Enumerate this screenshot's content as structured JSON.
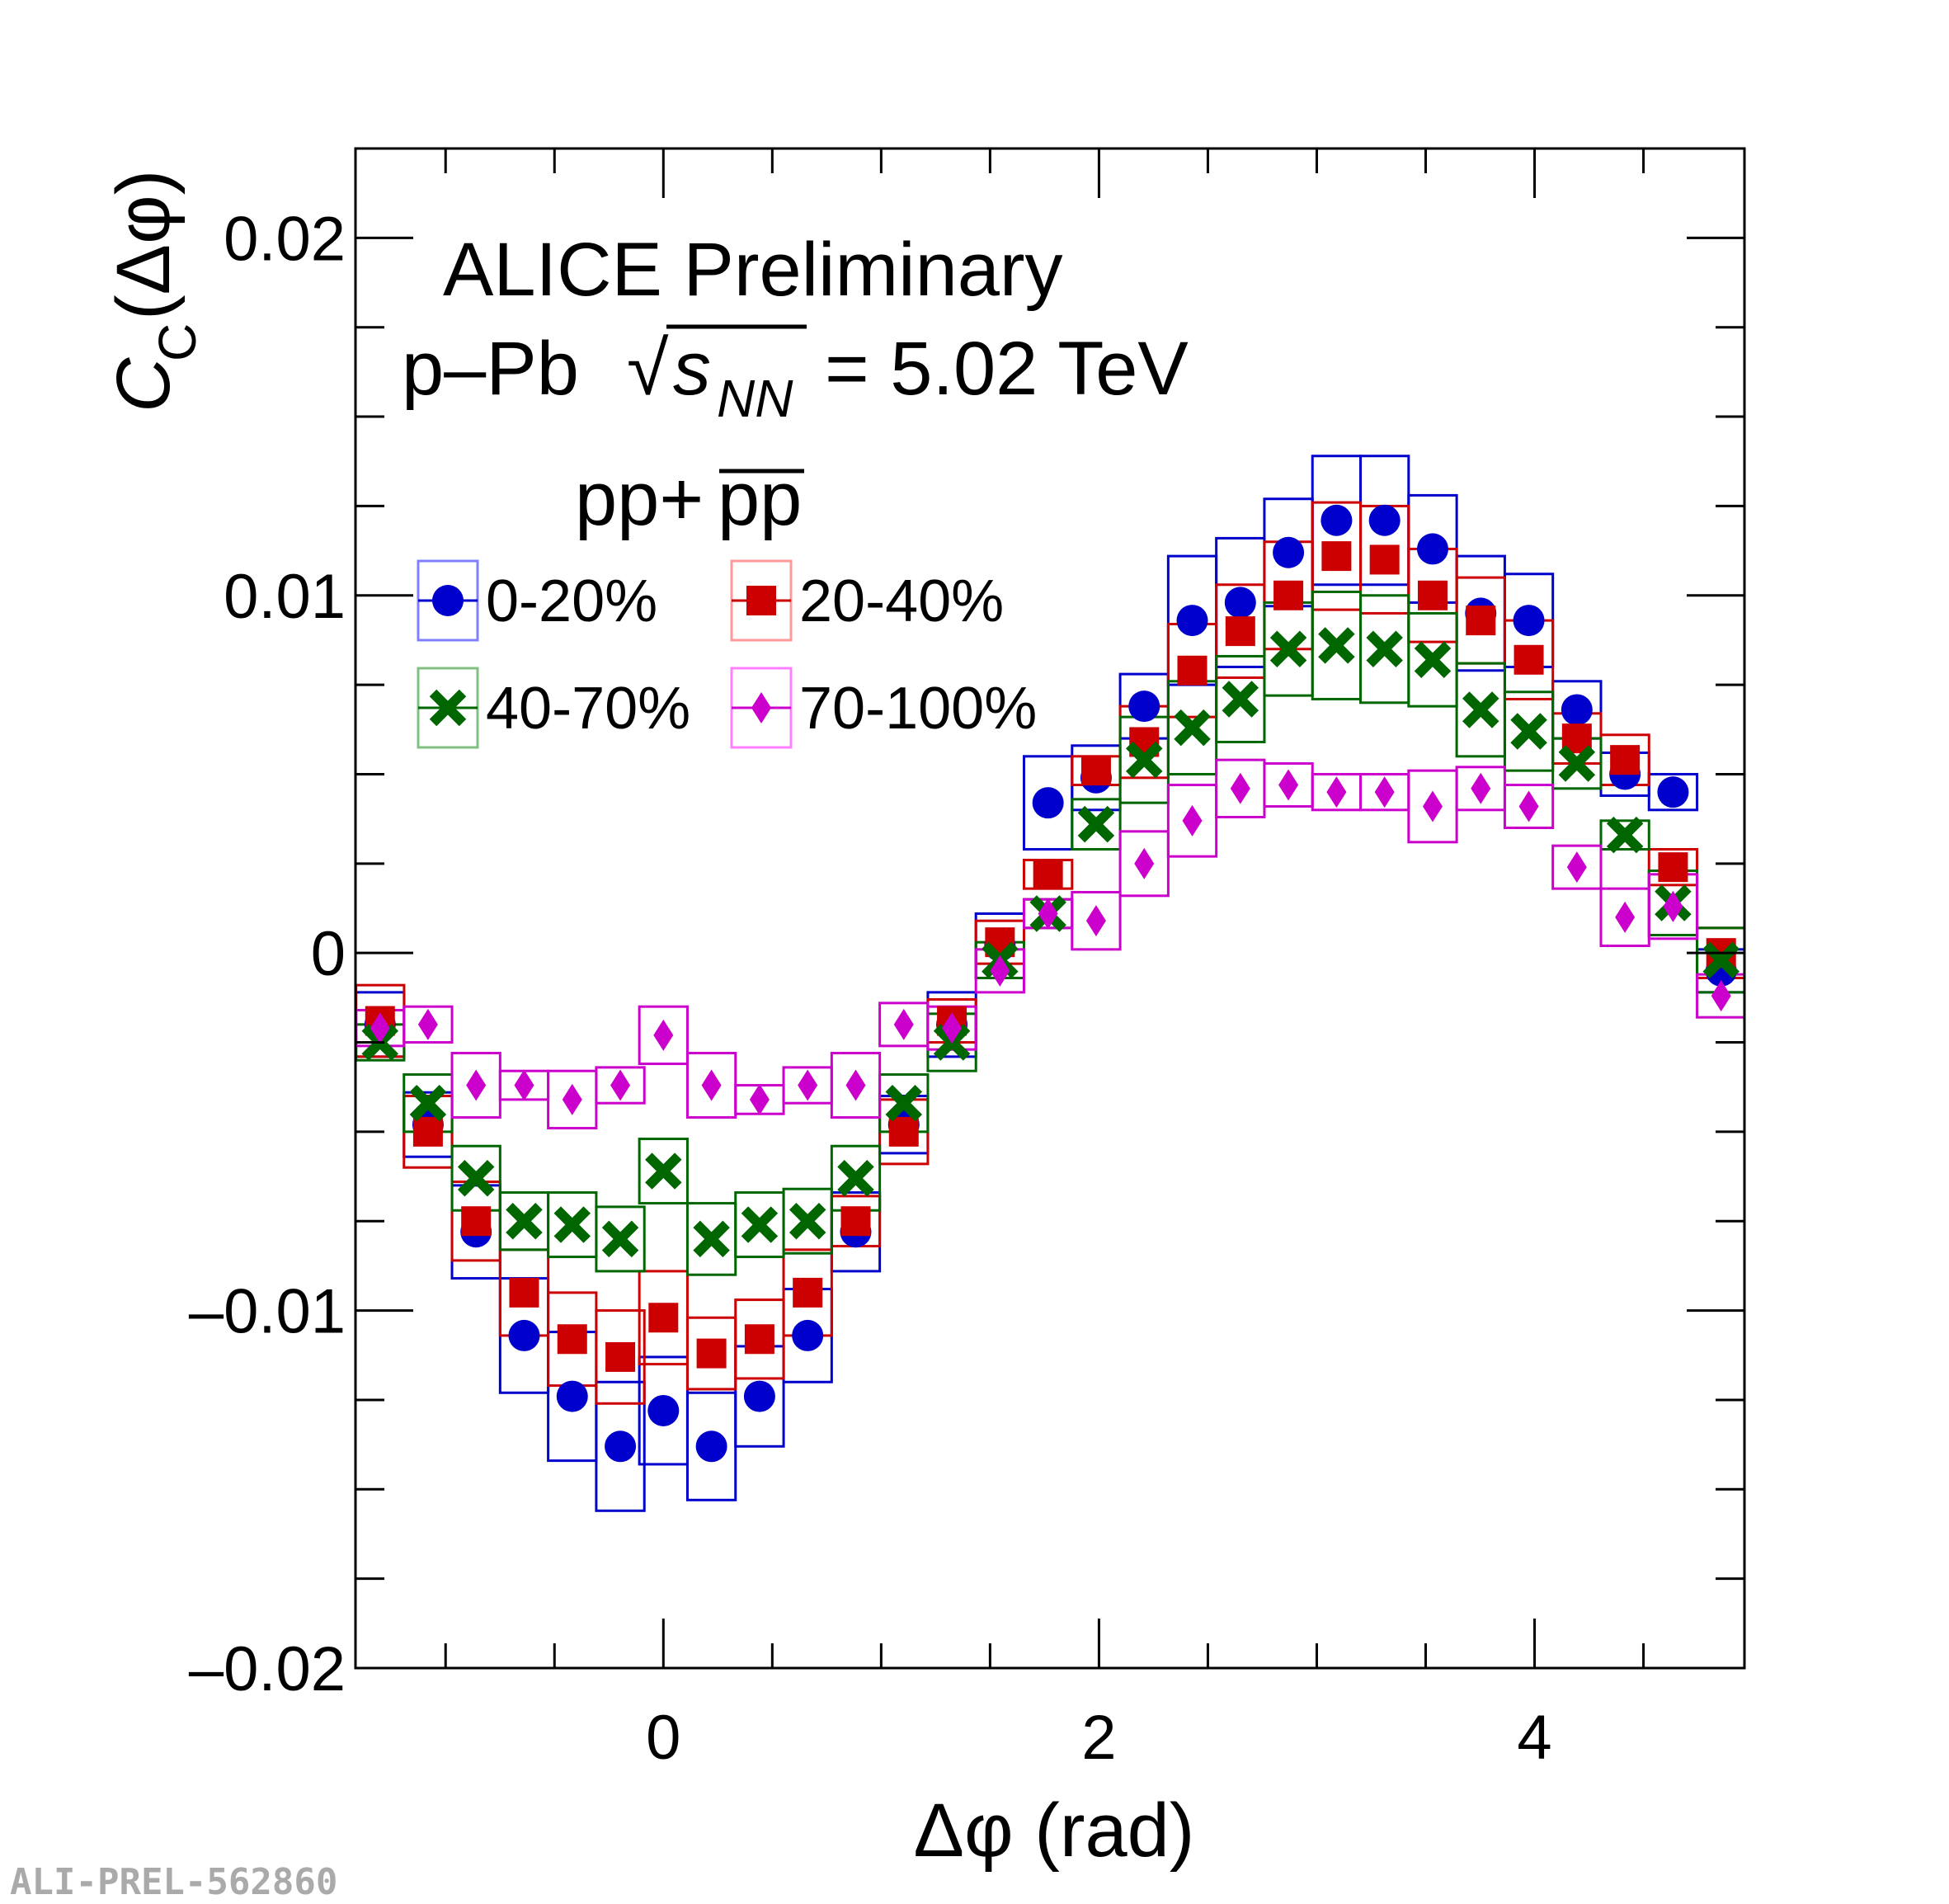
{
  "chart_data": {
    "type": "scatter",
    "title": "ALICE Preliminary",
    "subtitle_prefix": "p–Pb",
    "subtitle_sqrt_symbol": "√",
    "subtitle_s": "s",
    "subtitle_sub": "NN",
    "subtitle_suffix": "= 5.02 TeV",
    "legend_header_plain": "pp+",
    "legend_header_overlined": "pp",
    "xlabel": "Δφ (rad)",
    "ylabel_main": "C",
    "ylabel_sub": "C",
    "ylabel_arg": "(Δφ)",
    "xlim": [
      -1.4137,
      4.9637
    ],
    "ylim": [
      -0.02,
      0.0225
    ],
    "x_ticks": [
      0,
      2,
      4
    ],
    "x_tick_labels": [
      "0",
      "2",
      "4"
    ],
    "y_ticks": [
      -0.02,
      -0.01,
      0,
      0.01,
      0.02
    ],
    "y_tick_labels": [
      "–0.02",
      "–0.01",
      "0",
      "0.01",
      "0.02"
    ],
    "legend_position": "top-left",
    "bin_width": 0.2208,
    "x": [
      -1.3009,
      -1.0808,
      -0.8601,
      -0.6393,
      -0.4186,
      -0.1978,
      0.0,
      0.2208,
      0.4416,
      0.6623,
      0.8831,
      1.1038,
      1.3246,
      1.5453,
      1.7661,
      1.9868,
      2.2076,
      2.4283,
      2.6491,
      2.8698,
      3.0906,
      3.3113,
      3.5321,
      3.7528,
      3.9736,
      4.1943,
      4.4151,
      4.6358,
      4.8566
    ],
    "series": [
      {
        "name": "0-20%",
        "color": "#0000cc",
        "marker": "circle",
        "values": [
          -0.002,
          -0.0048,
          -0.0078,
          -0.0107,
          -0.0124,
          -0.0138,
          -0.0128,
          -0.0138,
          -0.0124,
          -0.0107,
          -0.0078,
          -0.0048,
          -0.002,
          0.0002,
          0.0042,
          0.0049,
          0.0069,
          0.0093,
          0.0098,
          0.0112,
          0.0121,
          0.0121,
          0.0113,
          0.0095,
          0.0093,
          0.0068,
          0.005,
          0.0045,
          -0.0005
        ],
        "sys_half": [
          0.0009,
          0.0009,
          0.0013,
          0.0016,
          0.0018,
          0.0018,
          0.0015,
          0.0015,
          0.0014,
          0.0013,
          0.0011,
          0.0008,
          0.0009,
          0.0009,
          0.0013,
          0.0009,
          0.0009,
          0.0018,
          0.0018,
          0.0015,
          0.0018,
          0.0018,
          0.0015,
          0.0016,
          0.0013,
          0.0008,
          0.0006,
          0.0005,
          0.0006
        ]
      },
      {
        "name": "20-40%",
        "color": "#cc0000",
        "marker": "square",
        "values": [
          -0.0019,
          -0.005,
          -0.0075,
          -0.0095,
          -0.0108,
          -0.0113,
          -0.0102,
          -0.0112,
          -0.0108,
          -0.0095,
          -0.0075,
          -0.005,
          -0.0019,
          0.0003,
          0.0022,
          0.0051,
          0.0059,
          0.0079,
          0.009,
          0.01,
          0.0111,
          0.011,
          0.01,
          0.0093,
          0.0082,
          0.006,
          0.0054,
          0.0024,
          0.0
        ],
        "sys_half": [
          0.001,
          0.001,
          0.0011,
          0.0012,
          0.0013,
          0.0013,
          0.0013,
          0.001,
          0.0011,
          0.0012,
          0.0007,
          0.0009,
          0.0006,
          0.0006,
          0.0004,
          0.0004,
          0.001,
          0.0013,
          0.0013,
          0.0015,
          0.0015,
          0.0015,
          0.0013,
          0.0012,
          0.0011,
          0.0007,
          0.0007,
          0.0005,
          0.0007
        ]
      },
      {
        "name": "40-70%",
        "color": "#006600",
        "marker": "cross",
        "values": [
          -0.0025,
          -0.0042,
          -0.0063,
          -0.0075,
          -0.0076,
          -0.008,
          -0.0061,
          -0.008,
          -0.0076,
          -0.0075,
          -0.0063,
          -0.0042,
          -0.0025,
          -0.0002,
          0.0011,
          0.0036,
          0.0054,
          0.0063,
          0.0071,
          0.0085,
          0.0086,
          0.0085,
          0.0082,
          0.0068,
          0.0062,
          0.0053,
          0.0033,
          0.0014,
          -0.0002
        ],
        "sys_half": [
          0.0005,
          0.0008,
          0.0009,
          0.0008,
          0.0009,
          0.0009,
          0.0009,
          0.001,
          0.0009,
          0.0009,
          0.0009,
          0.0008,
          0.0008,
          0.0005,
          0.0004,
          0.0007,
          0.0012,
          0.0013,
          0.0012,
          0.0013,
          0.0015,
          0.0015,
          0.0013,
          0.0013,
          0.0011,
          0.0007,
          0.0004,
          0.0009,
          0.0009
        ]
      },
      {
        "name": "70-100%",
        "color": "#cc00cc",
        "marker": "diamond",
        "values": [
          -0.0021,
          -0.002,
          -0.0037,
          -0.0037,
          -0.0041,
          -0.0037,
          -0.0023,
          -0.0037,
          -0.0041,
          -0.0037,
          -0.0037,
          -0.002,
          -0.0021,
          -0.0005,
          0.0011,
          0.0009,
          0.0025,
          0.0037,
          0.0046,
          0.0047,
          0.0045,
          0.0045,
          0.0041,
          0.0046,
          0.0041,
          0.0024,
          0.001,
          0.0013,
          -0.0012
        ],
        "sys_half": [
          0.0005,
          0.0005,
          0.0009,
          0.0004,
          0.0008,
          0.0005,
          0.0008,
          0.0009,
          0.0004,
          0.0005,
          0.0009,
          0.0006,
          0.0006,
          0.0006,
          0.0004,
          0.0008,
          0.0009,
          0.001,
          0.0008,
          0.0006,
          0.0005,
          0.0005,
          0.001,
          0.0006,
          0.0006,
          0.0006,
          0.0008,
          0.0009,
          0.0006
        ]
      }
    ]
  },
  "watermark": "ALI-PREL-562860"
}
